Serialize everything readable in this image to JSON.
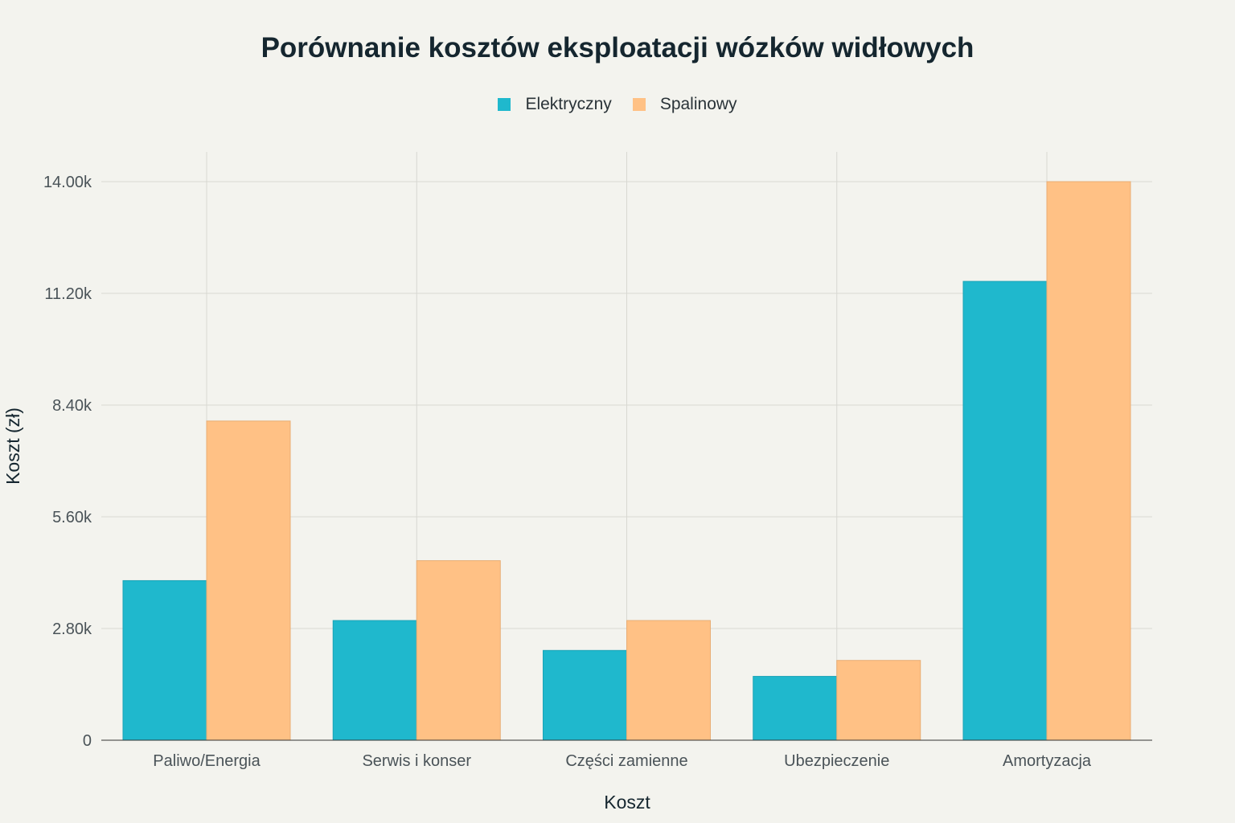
{
  "chart_data": {
    "type": "bar",
    "title": "Porównanie kosztów eksploatacji wózków widłowych",
    "xlabel": "Koszt",
    "ylabel": "Koszt (zł)",
    "categories": [
      "Paliwo/Energia",
      "Serwis i konser",
      "Części zamienne",
      "Ubezpieczenie",
      "Amortyzacja"
    ],
    "series": [
      {
        "name": "Elektryczny",
        "color": "#1fb8cd",
        "values": [
          4000,
          3000,
          2250,
          1600,
          11500
        ]
      },
      {
        "name": "Spalinowy",
        "color": "#ffc185",
        "values": [
          8000,
          4500,
          3000,
          2000,
          14000
        ]
      }
    ],
    "ylim": [
      0,
      14000
    ],
    "yticks": [
      0,
      2800,
      5600,
      8400,
      11200,
      14000
    ],
    "ytick_labels": [
      "0",
      "2.80k",
      "5.60k",
      "8.40k",
      "11.20k",
      "14.00k"
    ],
    "grid": true,
    "legend_position": "top-center"
  }
}
